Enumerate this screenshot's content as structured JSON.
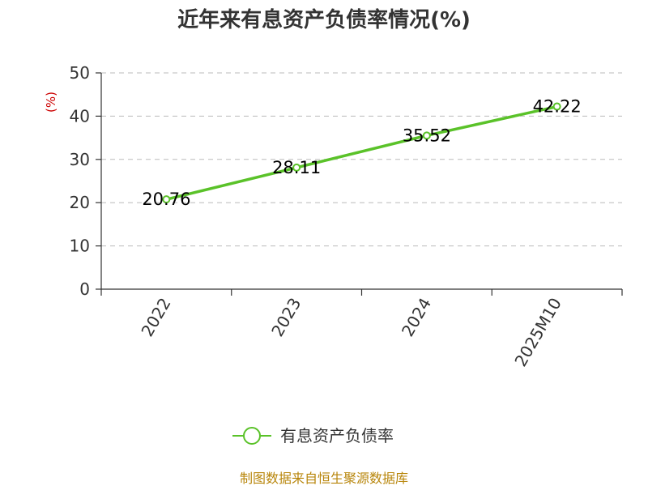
{
  "chart_data": {
    "type": "line",
    "title": "近年来有息资产负债率情况(%)",
    "ylabel": "(%)",
    "xlabel": "",
    "categories": [
      "2022",
      "2023",
      "2024",
      "2025M10"
    ],
    "y_ticks": [
      "0",
      "10",
      "20",
      "30",
      "40",
      "50"
    ],
    "ylim": [
      0,
      50
    ],
    "grid": true,
    "legend_position": "bottom",
    "series": [
      {
        "name": "有息资产负债率",
        "values": [
          20.76,
          28.11,
          35.52,
          42.22
        ],
        "labels": [
          "20.76",
          "28.11",
          "35.52",
          "42.22"
        ],
        "color": "#5ac229"
      }
    ],
    "source": "制图数据来自恒生聚源数据库"
  }
}
